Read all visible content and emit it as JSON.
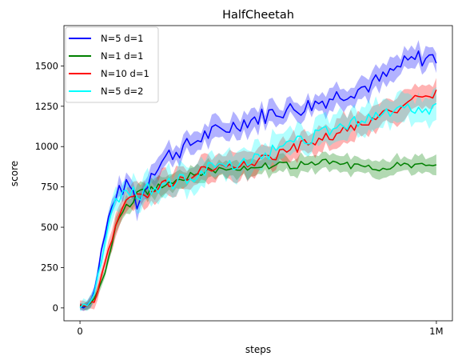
{
  "chart_data": {
    "type": "line",
    "title": "HalfCheetah",
    "xlabel": "steps",
    "ylabel": "score",
    "xlim": [
      -45000,
      1045000
    ],
    "ylim": [
      -80,
      1750
    ],
    "x_ticks": [
      {
        "value": 0,
        "label": "0"
      },
      {
        "value": 1000000,
        "label": "1M"
      }
    ],
    "y_ticks": [
      0,
      250,
      500,
      750,
      1000,
      1250,
      1500
    ],
    "legend_position": "top-left",
    "grid": false,
    "band": "shaded region around each line",
    "series": [
      {
        "name": "N=5 d=1",
        "color": "#0000ff",
        "band_color": "#0000ff",
        "anchors": [
          [
            0,
            10
          ],
          [
            20000,
            20
          ],
          [
            40000,
            100
          ],
          [
            60000,
            350
          ],
          [
            80000,
            550
          ],
          [
            100000,
            700
          ],
          [
            120000,
            740
          ],
          [
            140000,
            760
          ],
          [
            160000,
            650
          ],
          [
            180000,
            720
          ],
          [
            200000,
            850
          ],
          [
            250000,
            950
          ],
          [
            300000,
            1000
          ],
          [
            350000,
            1070
          ],
          [
            400000,
            1100
          ],
          [
            450000,
            1150
          ],
          [
            500000,
            1180
          ],
          [
            550000,
            1220
          ],
          [
            600000,
            1230
          ],
          [
            650000,
            1260
          ],
          [
            700000,
            1300
          ],
          [
            750000,
            1340
          ],
          [
            800000,
            1370
          ],
          [
            850000,
            1420
          ],
          [
            900000,
            1500
          ],
          [
            950000,
            1550
          ],
          [
            1000000,
            1550
          ]
        ],
        "amp": 55,
        "band_width": 60
      },
      {
        "name": "N=1 d=1",
        "color": "#008000",
        "band_color": "#008000",
        "anchors": [
          [
            0,
            10
          ],
          [
            20000,
            15
          ],
          [
            40000,
            50
          ],
          [
            60000,
            150
          ],
          [
            80000,
            300
          ],
          [
            100000,
            500
          ],
          [
            120000,
            600
          ],
          [
            140000,
            650
          ],
          [
            160000,
            700
          ],
          [
            200000,
            730
          ],
          [
            250000,
            780
          ],
          [
            300000,
            820
          ],
          [
            350000,
            850
          ],
          [
            400000,
            860
          ],
          [
            450000,
            870
          ],
          [
            500000,
            880
          ],
          [
            550000,
            880
          ],
          [
            600000,
            880
          ],
          [
            650000,
            890
          ],
          [
            700000,
            900
          ],
          [
            750000,
            890
          ],
          [
            800000,
            880
          ],
          [
            850000,
            870
          ],
          [
            900000,
            880
          ],
          [
            950000,
            880
          ],
          [
            1000000,
            890
          ]
        ],
        "amp": 25,
        "band_width": 50
      },
      {
        "name": "N=10 d=1",
        "color": "#ff0000",
        "band_color": "#ff0000",
        "anchors": [
          [
            0,
            10
          ],
          [
            20000,
            15
          ],
          [
            40000,
            50
          ],
          [
            60000,
            180
          ],
          [
            80000,
            350
          ],
          [
            100000,
            520
          ],
          [
            120000,
            620
          ],
          [
            140000,
            680
          ],
          [
            160000,
            700
          ],
          [
            200000,
            720
          ],
          [
            250000,
            770
          ],
          [
            300000,
            820
          ],
          [
            350000,
            860
          ],
          [
            400000,
            880
          ],
          [
            450000,
            890
          ],
          [
            500000,
            920
          ],
          [
            550000,
            950
          ],
          [
            600000,
            990
          ],
          [
            650000,
            1030
          ],
          [
            700000,
            1060
          ],
          [
            750000,
            1100
          ],
          [
            800000,
            1150
          ],
          [
            850000,
            1190
          ],
          [
            900000,
            1230
          ],
          [
            950000,
            1300
          ],
          [
            1000000,
            1340
          ]
        ],
        "amp": 35,
        "band_width": 75
      },
      {
        "name": "N=5 d=2",
        "color": "#00ffff",
        "band_color": "#00ffff",
        "anchors": [
          [
            0,
            10
          ],
          [
            20000,
            20
          ],
          [
            40000,
            100
          ],
          [
            60000,
            300
          ],
          [
            80000,
            500
          ],
          [
            100000,
            650
          ],
          [
            120000,
            700
          ],
          [
            140000,
            720
          ],
          [
            160000,
            700
          ],
          [
            200000,
            740
          ],
          [
            250000,
            760
          ],
          [
            300000,
            800
          ],
          [
            350000,
            850
          ],
          [
            400000,
            880
          ],
          [
            450000,
            900
          ],
          [
            500000,
            940
          ],
          [
            550000,
            980
          ],
          [
            600000,
            1020
          ],
          [
            650000,
            1060
          ],
          [
            700000,
            1100
          ],
          [
            750000,
            1140
          ],
          [
            800000,
            1180
          ],
          [
            850000,
            1210
          ],
          [
            900000,
            1230
          ],
          [
            950000,
            1240
          ],
          [
            1000000,
            1230
          ]
        ],
        "amp": 45,
        "band_width": 80
      }
    ]
  }
}
